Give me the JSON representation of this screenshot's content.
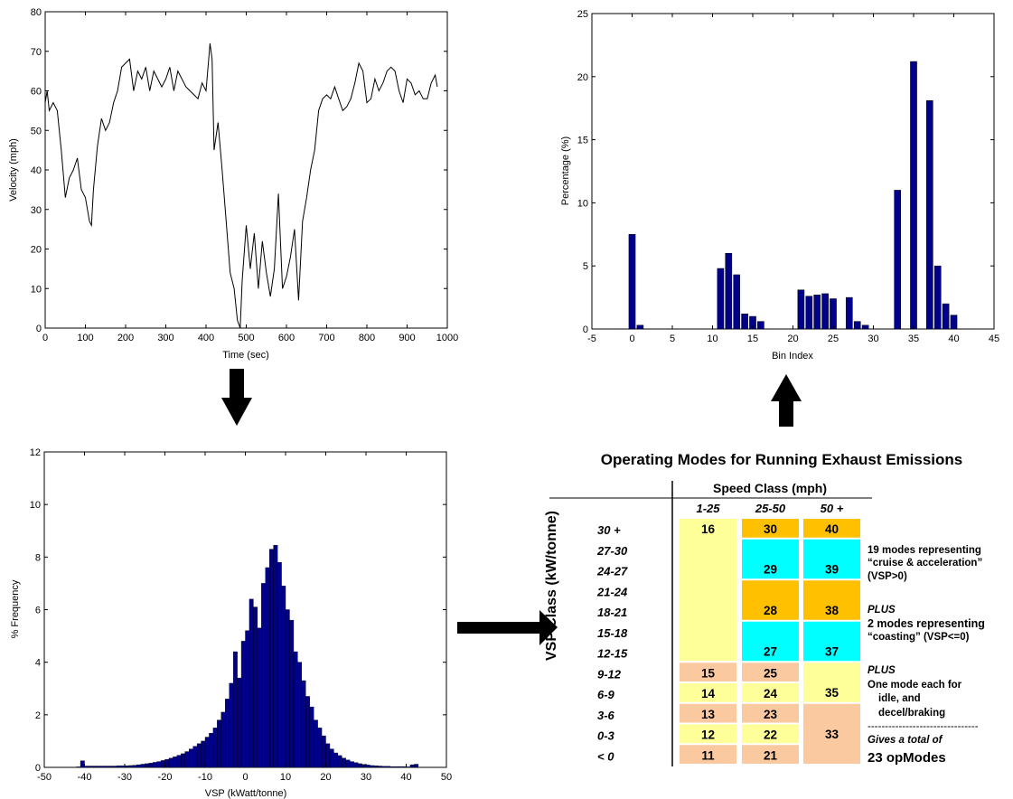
{
  "colors": {
    "bar": "#00008b",
    "line": "#000000",
    "yellow": "#ffff99",
    "orange": "#ffc000",
    "cyan": "#00ffff",
    "peach": "#fbc9a0",
    "arrow": "#000000"
  },
  "chart_data": [
    {
      "type": "line",
      "xlabel": "Time (sec)",
      "ylabel": "Velocity (mph)",
      "xlim": [
        0,
        1000
      ],
      "ylim": [
        0,
        80
      ],
      "xticks": [
        "0",
        "100",
        "200",
        "300",
        "400",
        "500",
        "600",
        "700",
        "800",
        "900",
        "1000"
      ],
      "yticks": [
        "0",
        "10",
        "20",
        "30",
        "40",
        "50",
        "60",
        "70",
        "80"
      ],
      "series": [
        {
          "x": [
            0,
            5,
            10,
            20,
            30,
            40,
            50,
            60,
            70,
            80,
            90,
            100,
            110,
            115,
            120,
            130,
            140,
            150,
            160,
            170,
            180,
            190,
            200,
            210,
            220,
            230,
            240,
            250,
            260,
            270,
            280,
            290,
            300,
            310,
            320,
            330,
            340,
            350,
            360,
            370,
            380,
            390,
            400,
            410,
            415,
            420,
            430,
            440,
            450,
            460,
            470,
            478,
            485,
            490,
            500,
            510,
            520,
            530,
            540,
            550,
            560,
            570,
            580,
            590,
            600,
            610,
            620,
            630,
            640,
            650,
            660,
            670,
            680,
            690,
            700,
            710,
            720,
            730,
            740,
            750,
            760,
            770,
            780,
            790,
            800,
            810,
            820,
            830,
            840,
            850,
            860,
            870,
            880,
            890,
            900,
            910,
            920,
            930,
            940,
            950,
            960,
            970,
            975
          ],
          "y": [
            57,
            60,
            55,
            57,
            55,
            45,
            33,
            38,
            40,
            43,
            35,
            33,
            27,
            26,
            35,
            46,
            53,
            50,
            52,
            57,
            60,
            66,
            67,
            68,
            60,
            65,
            63,
            66,
            60,
            65,
            63,
            61,
            63,
            66,
            60,
            65,
            63,
            61,
            60,
            59,
            58,
            62,
            60,
            72,
            68,
            45,
            52,
            40,
            27,
            14,
            10,
            2,
            0,
            12,
            26,
            15,
            24,
            10,
            22,
            14,
            8,
            15,
            34,
            10,
            13,
            18,
            25,
            7,
            27,
            33,
            40,
            45,
            55,
            58,
            59,
            58,
            61,
            58,
            55,
            56,
            58,
            62,
            67,
            65,
            57,
            58,
            63,
            60,
            62,
            65,
            66,
            65,
            60,
            57,
            63,
            62,
            59,
            60,
            58,
            58,
            62,
            64,
            61
          ]
        }
      ]
    },
    {
      "type": "bar",
      "xlabel": "Bin Index",
      "ylabel": "Percentage (%)",
      "xlim": [
        -5,
        45
      ],
      "ylim": [
        0,
        25
      ],
      "xticks": [
        "-5",
        "0",
        "5",
        "10",
        "15",
        "20",
        "25",
        "30",
        "35",
        "40",
        "45"
      ],
      "yticks": [
        "0",
        "5",
        "10",
        "15",
        "20",
        "25"
      ],
      "x": [
        0,
        1,
        11,
        12,
        13,
        14,
        15,
        16,
        21,
        22,
        23,
        24,
        25,
        27,
        28,
        29,
        33,
        35,
        37,
        38,
        39,
        40
      ],
      "values": [
        7.5,
        0.3,
        4.8,
        6.0,
        4.3,
        1.2,
        1.0,
        0.6,
        3.1,
        2.6,
        2.7,
        2.8,
        2.4,
        2.5,
        0.6,
        0.3,
        11.0,
        21.2,
        18.1,
        5.0,
        2.0,
        1.1
      ]
    },
    {
      "type": "bar",
      "xlabel": "VSP (kWatt/tonne)",
      "ylabel": "% Frequency",
      "xlim": [
        -50,
        50
      ],
      "ylim": [
        0,
        12
      ],
      "xticks": [
        "-50",
        "-40",
        "-30",
        "-20",
        "-10",
        "0",
        "10",
        "20",
        "30",
        "40",
        "50"
      ],
      "yticks": [
        "0",
        "2",
        "4",
        "6",
        "8",
        "10",
        "12"
      ],
      "bin_width": 1,
      "x_start": -42,
      "values": [
        0.02,
        0.25,
        0.05,
        0.05,
        0.05,
        0.05,
        0.05,
        0.05,
        0.05,
        0.05,
        0.06,
        0.06,
        0.06,
        0.07,
        0.08,
        0.1,
        0.12,
        0.14,
        0.16,
        0.19,
        0.22,
        0.26,
        0.3,
        0.35,
        0.4,
        0.46,
        0.52,
        0.6,
        0.7,
        0.8,
        0.9,
        1.0,
        1.15,
        1.3,
        1.5,
        1.8,
        2.1,
        2.6,
        3.2,
        4.4,
        3.4,
        4.8,
        5.2,
        6.4,
        6.1,
        5.3,
        7.0,
        7.6,
        8.3,
        8.45,
        7.8,
        6.9,
        6.0,
        5.6,
        4.4,
        4.0,
        3.3,
        2.7,
        2.3,
        1.8,
        1.5,
        1.2,
        0.9,
        0.7,
        0.55,
        0.45,
        0.35,
        0.28,
        0.22,
        0.18,
        0.14,
        0.11,
        0.09,
        0.07,
        0.06,
        0.05,
        0.04,
        0.04,
        0.03,
        0.03,
        0.03,
        0.03,
        0.02,
        0.1,
        0.12
      ]
    }
  ],
  "table": {
    "title": "Operating Modes for Running Exhaust Emissions",
    "speed_header": "Speed Class (mph)",
    "speed_cols": [
      "1-25",
      "25-50",
      "50 +"
    ],
    "vsp_label": "VSP Class (kW/tonne)",
    "vsp_rows": [
      "30 +",
      "27-30",
      "24-27",
      "21-24",
      "18-21",
      "15-18",
      "12-15",
      "9-12",
      "6-9",
      "3-6",
      "0-3",
      "< 0"
    ],
    "col1": [
      {
        "r": 0,
        "span": 7,
        "fill": "yellow",
        "text": "16"
      },
      {
        "r": 7,
        "span": 1,
        "fill": "peach",
        "text": "15"
      },
      {
        "r": 8,
        "span": 1,
        "fill": "yellow",
        "text": "14"
      },
      {
        "r": 9,
        "span": 1,
        "fill": "peach",
        "text": "13"
      },
      {
        "r": 10,
        "span": 1,
        "fill": "yellow",
        "text": "12"
      },
      {
        "r": 11,
        "span": 1,
        "fill": "peach",
        "text": "11"
      }
    ],
    "col2": [
      {
        "r": 0,
        "span": 1,
        "fill": "orange",
        "text": "30"
      },
      {
        "r": 1,
        "span": 2,
        "fill": "cyan",
        "text": "29"
      },
      {
        "r": 3,
        "span": 2,
        "fill": "orange",
        "text": "28"
      },
      {
        "r": 5,
        "span": 2,
        "fill": "cyan",
        "text": "27"
      },
      {
        "r": 7,
        "span": 1,
        "fill": "peach",
        "text": "25"
      },
      {
        "r": 8,
        "span": 1,
        "fill": "yellow",
        "text": "24"
      },
      {
        "r": 9,
        "span": 1,
        "fill": "peach",
        "text": "23"
      },
      {
        "r": 10,
        "span": 1,
        "fill": "yellow",
        "text": "22"
      },
      {
        "r": 11,
        "span": 1,
        "fill": "peach",
        "text": "21"
      }
    ],
    "col3": [
      {
        "r": 0,
        "span": 1,
        "fill": "orange",
        "text": "40"
      },
      {
        "r": 1,
        "span": 2,
        "fill": "cyan",
        "text": "39"
      },
      {
        "r": 3,
        "span": 2,
        "fill": "orange",
        "text": "38"
      },
      {
        "r": 5,
        "span": 2,
        "fill": "cyan",
        "text": "37"
      },
      {
        "r": 7,
        "span": 2,
        "fill": "yellow",
        "text": "35"
      },
      {
        "r": 9,
        "span": 3,
        "fill": "peach",
        "text": "33"
      }
    ],
    "notes": {
      "cruise_l1": "19 modes representing",
      "cruise_l2": "“cruise & acceleration”",
      "cruise_l3": "(VSP>0)",
      "plus1": "PLUS",
      "coast_l1": "2 modes representing",
      "coast_l2": "“coasting” (VSP<=0)",
      "plus2": "PLUS",
      "idle_l1": "One mode each for",
      "idle_l2": "idle, and",
      "idle_l3": "decel/braking",
      "dashes": "--------------------------------",
      "total_l1": "Gives a total of",
      "total_l2": "23 opModes"
    }
  }
}
